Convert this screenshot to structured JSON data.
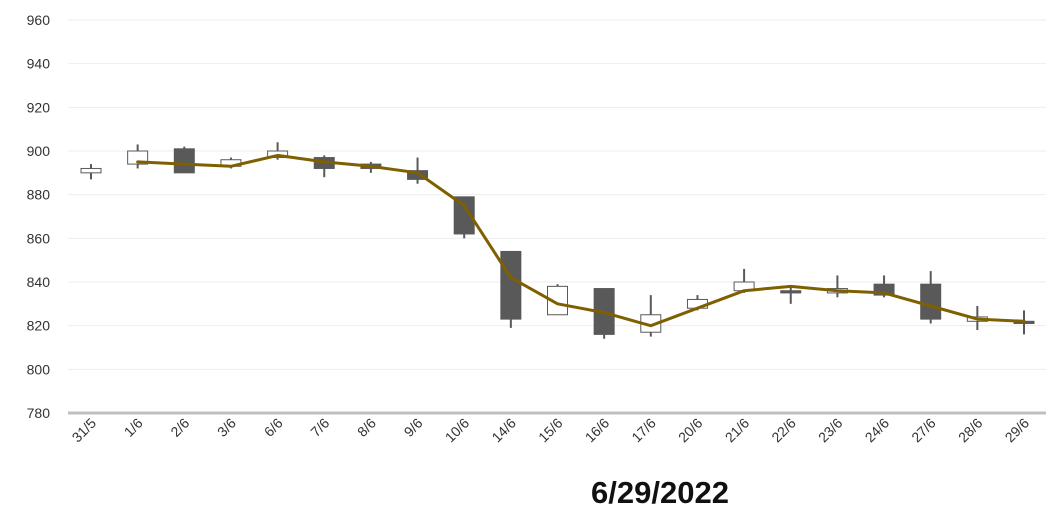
{
  "chart_data": {
    "type": "candlestick",
    "title": "",
    "xlabel": "6/29/2022",
    "ylabel": "",
    "ylim": [
      780,
      960
    ],
    "yticks": [
      780,
      800,
      820,
      840,
      860,
      880,
      900,
      920,
      940,
      960
    ],
    "grid": "horizontal",
    "legend": "none",
    "categories": [
      "31/5",
      "1/6",
      "2/6",
      "3/6",
      "6/6",
      "7/6",
      "8/6",
      "9/6",
      "10/6",
      "14/6",
      "15/6",
      "16/6",
      "17/6",
      "20/6",
      "21/6",
      "22/6",
      "23/6",
      "24/6",
      "27/6",
      "28/6",
      "29/6"
    ],
    "series": [
      {
        "type": "candlestick",
        "values": [
          {
            "open": 890,
            "high": 894,
            "low": 887,
            "close": 892
          },
          {
            "open": 894,
            "high": 903,
            "low": 892,
            "close": 900
          },
          {
            "open": 901,
            "high": 902,
            "low": 890,
            "close": 890
          },
          {
            "open": 893,
            "high": 897,
            "low": 892,
            "close": 896
          },
          {
            "open": 897,
            "high": 904,
            "low": 896,
            "close": 900
          },
          {
            "open": 897,
            "high": 898,
            "low": 888,
            "close": 892
          },
          {
            "open": 894,
            "high": 895,
            "low": 890,
            "close": 892
          },
          {
            "open": 891,
            "high": 897,
            "low": 885,
            "close": 887
          },
          {
            "open": 879,
            "high": 879,
            "low": 860,
            "close": 862
          },
          {
            "open": 854,
            "high": 854,
            "low": 819,
            "close": 823
          },
          {
            "open": 825,
            "high": 839,
            "low": 825,
            "close": 838
          },
          {
            "open": 837,
            "high": 837,
            "low": 814,
            "close": 816
          },
          {
            "open": 817,
            "high": 834,
            "low": 815,
            "close": 825
          },
          {
            "open": 828,
            "high": 834,
            "low": 827,
            "close": 832
          },
          {
            "open": 836,
            "high": 846,
            "low": 835,
            "close": 840
          },
          {
            "open": 836,
            "high": 838,
            "low": 830,
            "close": 835
          },
          {
            "open": 835,
            "high": 843,
            "low": 833,
            "close": 837
          },
          {
            "open": 839,
            "high": 843,
            "low": 833,
            "close": 834
          },
          {
            "open": 839,
            "high": 845,
            "low": 821,
            "close": 823
          },
          {
            "open": 822,
            "high": 829,
            "low": 818,
            "close": 824
          },
          {
            "open": 822,
            "high": 827,
            "low": 816,
            "close": 821
          }
        ]
      },
      {
        "type": "line",
        "values": [
          null,
          895,
          894,
          893,
          898,
          895,
          893,
          890,
          875,
          842,
          830,
          826,
          820,
          828,
          836,
          838,
          836,
          835,
          829,
          823,
          822
        ]
      }
    ],
    "colors": {
      "up_fill": "#ffffff",
      "up_stroke": "#595959",
      "down_fill": "#595959",
      "wick": "#595959",
      "line": "#7f6000",
      "grid": "#eeeeee",
      "axis": "#bfbfbf"
    }
  }
}
